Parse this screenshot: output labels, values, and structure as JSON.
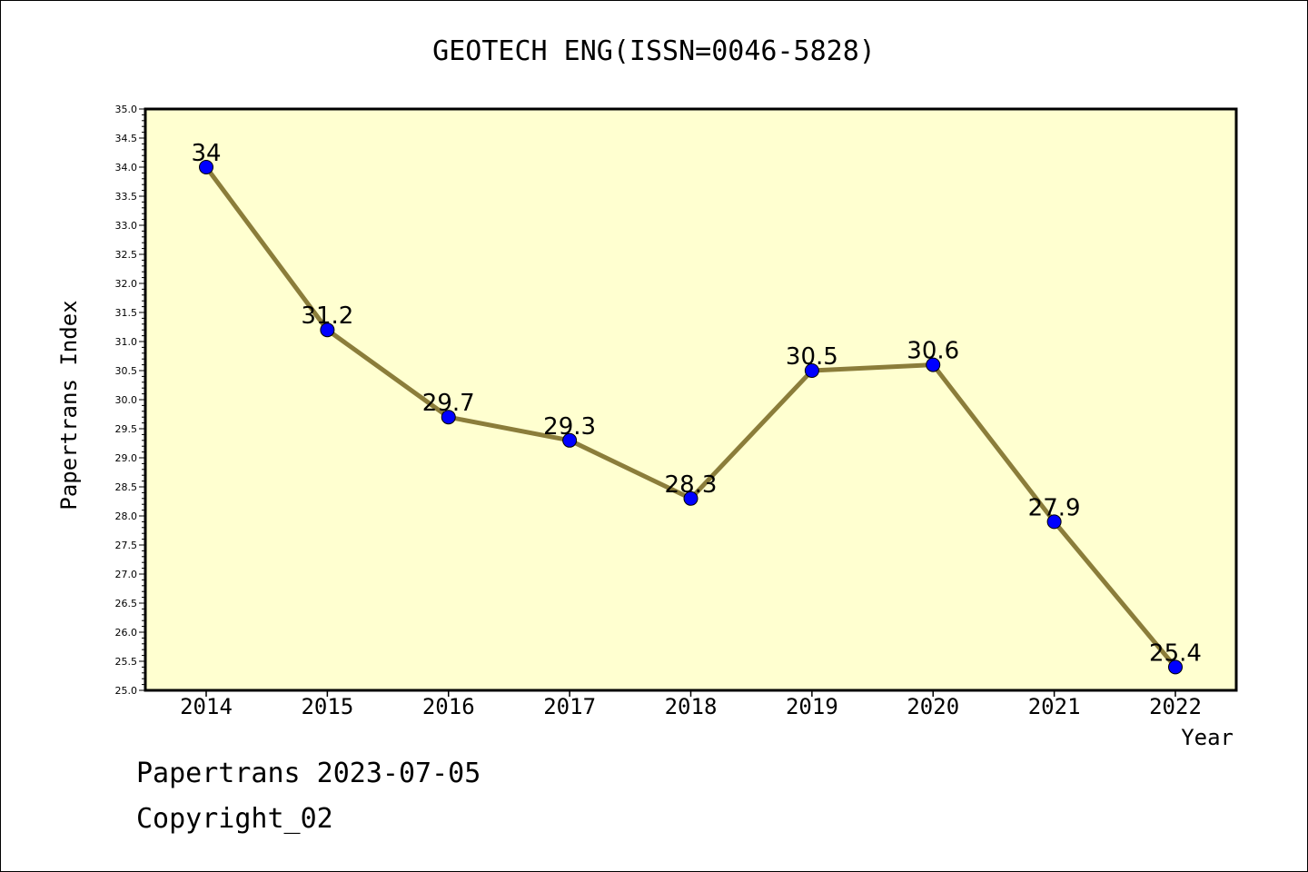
{
  "chart_data": {
    "type": "line",
    "title": "GEOTECH ENG(ISSN=0046-5828)",
    "xlabel": "Year",
    "ylabel": "Papertrans Index",
    "categories": [
      "2014",
      "2015",
      "2016",
      "2017",
      "2018",
      "2019",
      "2020",
      "2021",
      "2022"
    ],
    "series": [
      {
        "values": [
          34,
          31.2,
          29.7,
          29.3,
          28.3,
          30.5,
          30.6,
          27.9,
          25.4
        ],
        "data_labels": [
          "34",
          "31.2",
          "29.7",
          "29.3",
          "28.3",
          "30.5",
          "30.6",
          "27.9",
          "25.4"
        ]
      }
    ],
    "ylim": [
      25.0,
      35.0
    ],
    "yticks": [
      "25.0",
      "25.5",
      "26.0",
      "26.5",
      "27.0",
      "27.5",
      "28.0",
      "28.5",
      "29.0",
      "29.5",
      "30.0",
      "30.5",
      "31.0",
      "31.5",
      "32.0",
      "32.5",
      "33.0",
      "33.5",
      "34.0",
      "34.5",
      "35.0"
    ],
    "grid": false,
    "colors": {
      "plot_background": "#ffffd0",
      "line": "#8b7d3a",
      "marker": "#0000ff"
    }
  },
  "footer": {
    "line1": "Papertrans 2023-07-05",
    "line2": "Copyright_02"
  }
}
